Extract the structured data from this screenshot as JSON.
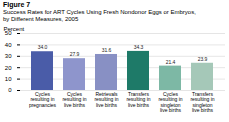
{
  "chart_data": {
    "type": "bar",
    "title": "Figure 7",
    "subtitle": "Success Rates for ART Cycles Using Fresh Nondonor Eggs or Embryos,\nby Different Measures, 2005",
    "categories": [
      "Cycles\nresulting in\npregnancies",
      "Cycles\nresulting in\nlive births",
      "Retrievals\nresulting in\nlive births",
      "Transfers\nresulting in\nlive births",
      "Cycles\nresulting in\nsingleton\nlive births",
      "Transfers\nresulting in\nsingleton\nlive births"
    ],
    "values": [
      34.0,
      27.9,
      31.6,
      34.3,
      21.4,
      23.9
    ],
    "value_labels": [
      "34.0",
      "27.9",
      "31.6",
      "34.3",
      "21.4",
      "23.9"
    ],
    "colors": [
      "#4a5ca8",
      "#8e95cc",
      "#8890c4",
      "#1e7a68",
      "#7db8a5",
      "#a5c8b8"
    ],
    "ylabel": "Percent",
    "ylim": [
      0,
      50
    ],
    "yticks": [
      0,
      10,
      20,
      30,
      40,
      50
    ],
    "grid": true,
    "data_labels": true
  }
}
